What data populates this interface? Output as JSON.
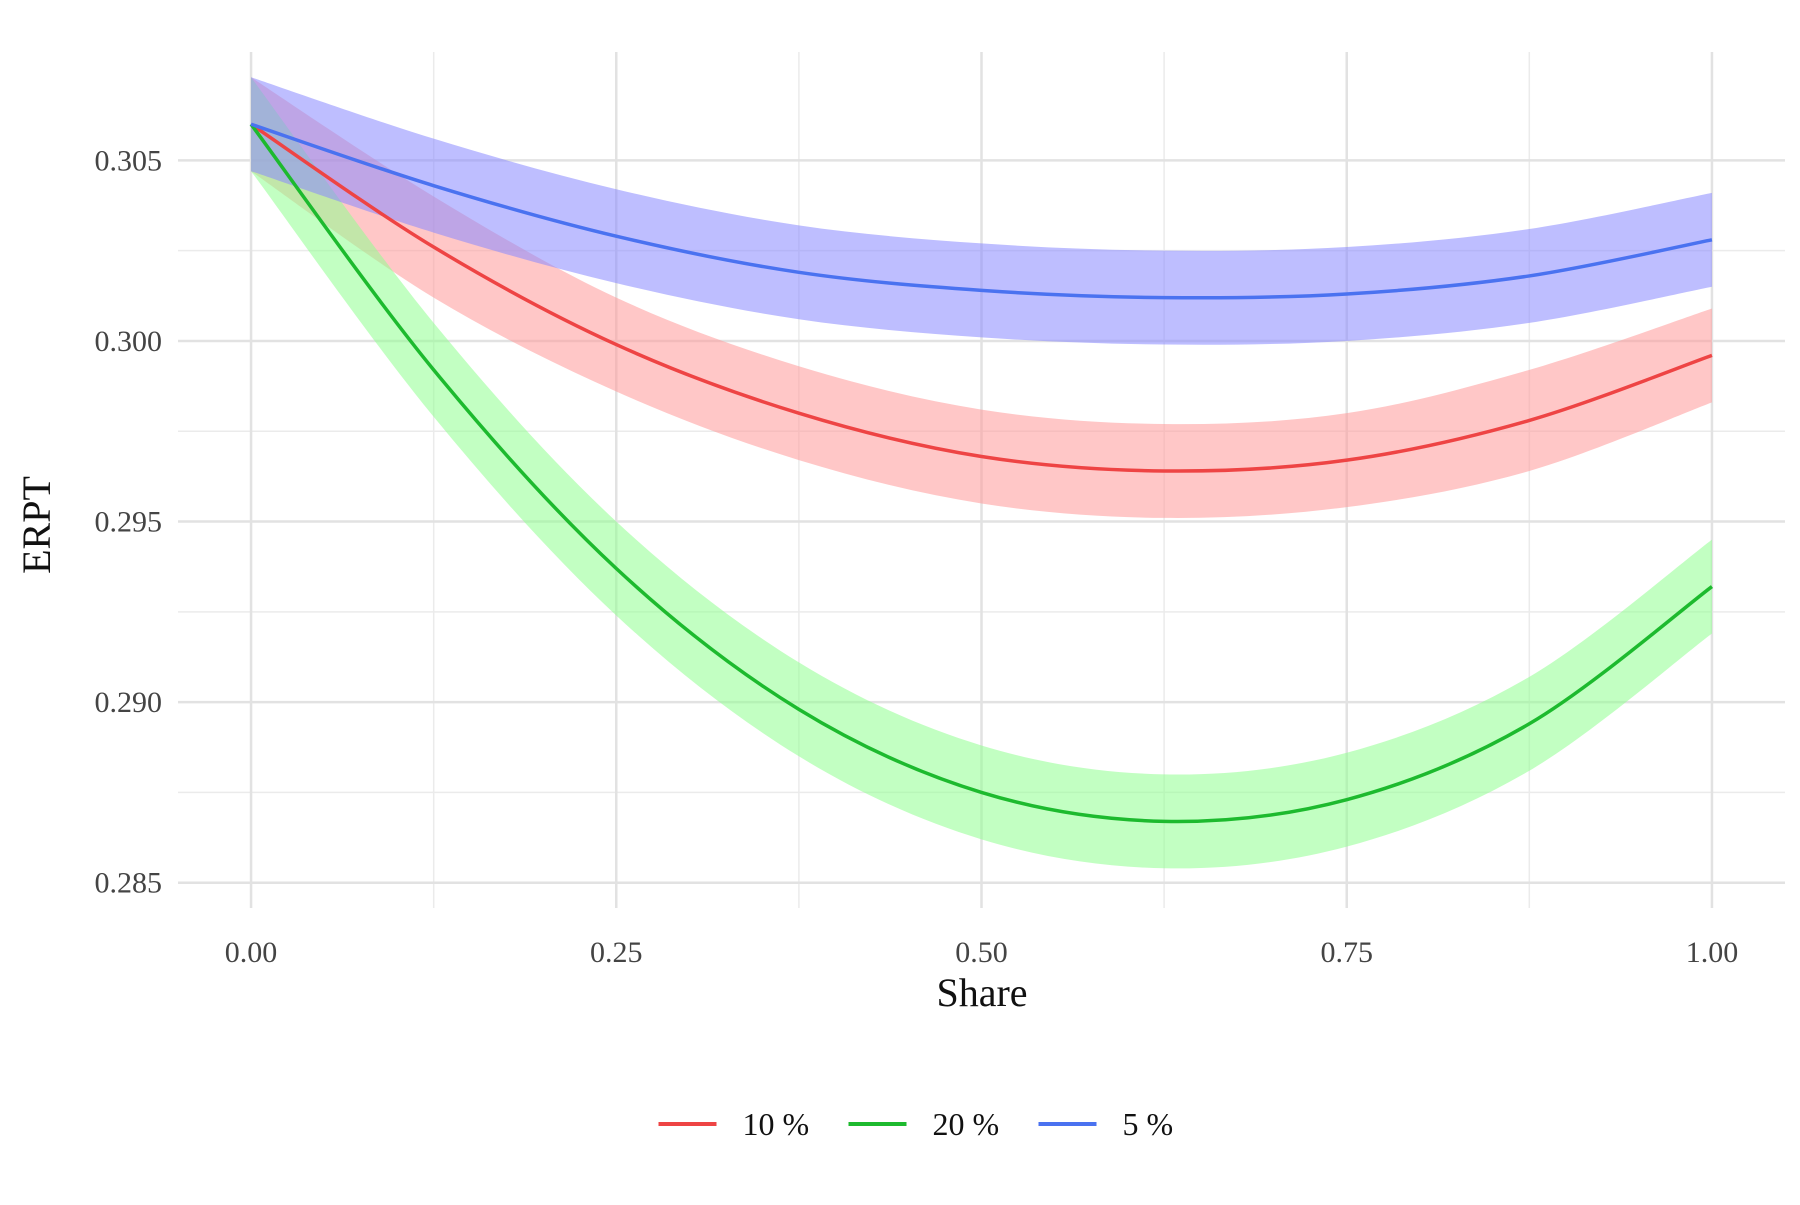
{
  "chart_data": {
    "type": "line",
    "title": "",
    "xlabel": "Share",
    "ylabel": "ERPT",
    "xlim": [
      -0.05,
      1.05
    ],
    "ylim": [
      0.2843,
      0.308
    ],
    "x_ticks": [
      0.0,
      0.25,
      0.5,
      0.75,
      1.0
    ],
    "x_tick_labels": [
      "0.00",
      "0.25",
      "0.50",
      "0.75",
      "1.00"
    ],
    "y_ticks": [
      0.285,
      0.29,
      0.295,
      0.3,
      0.305
    ],
    "y_tick_labels": [
      "0.285",
      "0.290",
      "0.295",
      "0.300",
      "0.305"
    ],
    "grid": true,
    "legend_position": "bottom",
    "x": [
      0.0,
      0.125,
      0.25,
      0.375,
      0.5,
      0.625,
      0.75,
      0.875,
      1.0
    ],
    "series": [
      {
        "name": "10 %",
        "color": "#ee4444",
        "band_color": "#ff9999",
        "values": [
          0.306,
          0.3026,
          0.2999,
          0.298,
          0.2968,
          0.2964,
          0.2967,
          0.2978,
          0.2996
        ],
        "lower": [
          0.3047,
          0.3012,
          0.2986,
          0.2967,
          0.2955,
          0.2951,
          0.2954,
          0.2964,
          0.2983
        ],
        "upper": [
          0.3073,
          0.304,
          0.3012,
          0.2993,
          0.2981,
          0.2977,
          0.298,
          0.2992,
          0.3009
        ]
      },
      {
        "name": "20 %",
        "color": "#1dba2e",
        "band_color": "#90ff90",
        "values": [
          0.306,
          0.2992,
          0.2937,
          0.2898,
          0.2875,
          0.2867,
          0.2873,
          0.2894,
          0.2932
        ],
        "lower": [
          0.3047,
          0.2979,
          0.2924,
          0.2885,
          0.2862,
          0.2854,
          0.286,
          0.2881,
          0.2919
        ],
        "upper": [
          0.3073,
          0.3005,
          0.295,
          0.2911,
          0.2888,
          0.288,
          0.2886,
          0.2907,
          0.2945
        ]
      },
      {
        "name": "5 %",
        "color": "#4a72f0",
        "band_color": "#8888ff",
        "values": [
          0.306,
          0.3043,
          0.3029,
          0.3019,
          0.3014,
          0.3012,
          0.3013,
          0.3018,
          0.3028
        ],
        "lower": [
          0.3047,
          0.303,
          0.3016,
          0.3006,
          0.3001,
          0.2999,
          0.3,
          0.3005,
          0.3015
        ],
        "upper": [
          0.3073,
          0.3056,
          0.3042,
          0.3032,
          0.3027,
          0.3025,
          0.3026,
          0.3031,
          0.3041
        ]
      }
    ]
  }
}
